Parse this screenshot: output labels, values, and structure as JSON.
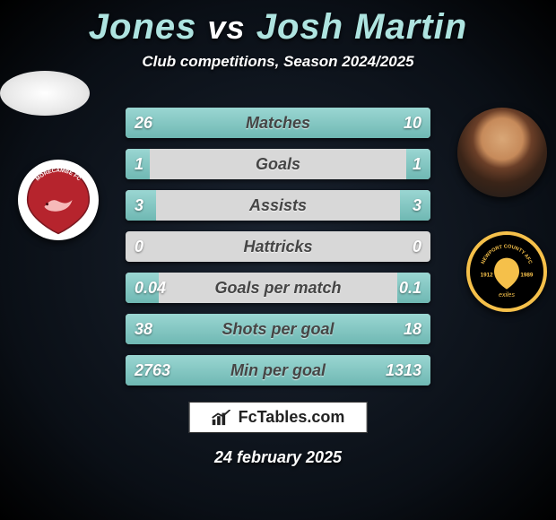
{
  "title": {
    "player_a": "Jones",
    "vs": "vs",
    "player_b": "Josh Martin"
  },
  "subtitle": "Club competitions, Season 2024/2025",
  "accent_color": "#aee4e0",
  "bar_fill_color": "#8cccc7",
  "bar_bg_color": "#d8d8d8",
  "rows": [
    {
      "label": "Matches",
      "left": "26",
      "right": "10",
      "lw": 50,
      "rw": 50
    },
    {
      "label": "Goals",
      "left": "1",
      "right": "1",
      "lw": 8,
      "rw": 8
    },
    {
      "label": "Assists",
      "left": "3",
      "right": "3",
      "lw": 10,
      "rw": 10
    },
    {
      "label": "Hattricks",
      "left": "0",
      "right": "0",
      "lw": 0,
      "rw": 0
    },
    {
      "label": "Goals per match",
      "left": "0.04",
      "right": "0.1",
      "lw": 11,
      "rw": 11
    },
    {
      "label": "Shots per goal",
      "left": "38",
      "right": "18",
      "lw": 50,
      "rw": 50
    },
    {
      "label": "Min per goal",
      "left": "2763",
      "right": "1313",
      "lw": 50,
      "rw": 50
    }
  ],
  "branding": "FcTables.com",
  "date": "24 february 2025",
  "badges": {
    "left": {
      "name": "morecambe-fc",
      "primary": "#b6242d",
      "text": "MORECAMBE FC"
    },
    "right": {
      "name": "newport-county-afc",
      "primary": "#f5c04a",
      "text_top": "NEWPORT COUNTY AFC",
      "year_left": "1912",
      "year_right": "1989",
      "text_bottom": "exiles"
    }
  }
}
